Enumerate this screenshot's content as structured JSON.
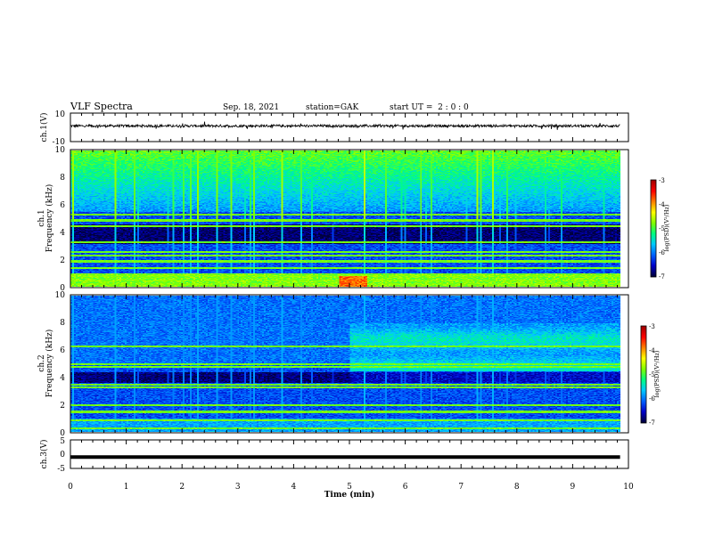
{
  "header": {
    "title": "VLF Spectra",
    "date": "Sep. 18, 2021",
    "station": "station=GAK",
    "start": "start UT =  2 : 0 : 0"
  },
  "chart_data": [
    {
      "type": "line",
      "panel": "ch1-waveform",
      "ylabel": "ch.1(V)",
      "ylim": [
        -10,
        10
      ],
      "yticks": [
        "10",
        "-10"
      ],
      "xlim": [
        0,
        10
      ],
      "series": [
        {
          "values_approx": "noisy trace around +1 V, spikes up to ~±2 V"
        }
      ]
    },
    {
      "type": "heatmap",
      "panel": "ch1-spectrogram",
      "ylabel": "ch.1\nFrequency (kHz)",
      "ylim": [
        0,
        10
      ],
      "yticks": [
        "0",
        "2",
        "4",
        "6",
        "8",
        "10"
      ],
      "xlim": [
        0,
        10
      ],
      "colorbar": {
        "label": "log(PSD)(V²/Hz)",
        "range": [
          -7,
          -3
        ],
        "ticks": [
          "-3",
          "-4",
          "-5",
          "-6",
          "-7"
        ]
      },
      "bands_khz": [
        0.2,
        0.5,
        0.8,
        1.4,
        1.9,
        2.3,
        2.6,
        3.3,
        4.5,
        4.9,
        5.3
      ],
      "impulsive_noise_above_khz": 5.5
    },
    {
      "type": "heatmap",
      "panel": "ch2-spectrogram",
      "ylabel": "ch.2\nFrequency (kHz)",
      "ylim": [
        0,
        10
      ],
      "yticks": [
        "0",
        "2",
        "4",
        "6",
        "8",
        "10"
      ],
      "xlim": [
        0,
        10
      ],
      "colorbar": {
        "label": "log(PSD)(V²/Hz)",
        "range": [
          -7,
          -3
        ],
        "ticks": [
          "-3",
          "-4",
          "-5",
          "-6",
          "-7"
        ]
      },
      "bands_khz": [
        0.3,
        0.9,
        1.5,
        2.0,
        3.3,
        3.5,
        4.8,
        5.0,
        6.3
      ],
      "enhancement_after_min": 5.0
    },
    {
      "type": "line",
      "panel": "ch3-waveform",
      "ylabel": "ch.3(V)",
      "ylim": [
        -5,
        5
      ],
      "yticks": [
        "5",
        "0",
        "-5"
      ],
      "xlim": [
        0,
        10
      ],
      "series": [
        {
          "values_approx": "flat at about -1 V"
        }
      ]
    }
  ],
  "x_axis": {
    "label": "Time (min)",
    "ticks": [
      "0",
      "1",
      "2",
      "3",
      "4",
      "5",
      "6",
      "7",
      "8",
      "9",
      "10"
    ],
    "data_end_min": 9.85
  },
  "colors": {
    "colormap": [
      "#00003a",
      "#0000c8",
      "#0060ff",
      "#00c8ff",
      "#00ff80",
      "#80ff00",
      "#ffff00",
      "#ff8000",
      "#ff0000",
      "#a00000"
    ],
    "trace": "#000000",
    "axes": "#000000"
  }
}
